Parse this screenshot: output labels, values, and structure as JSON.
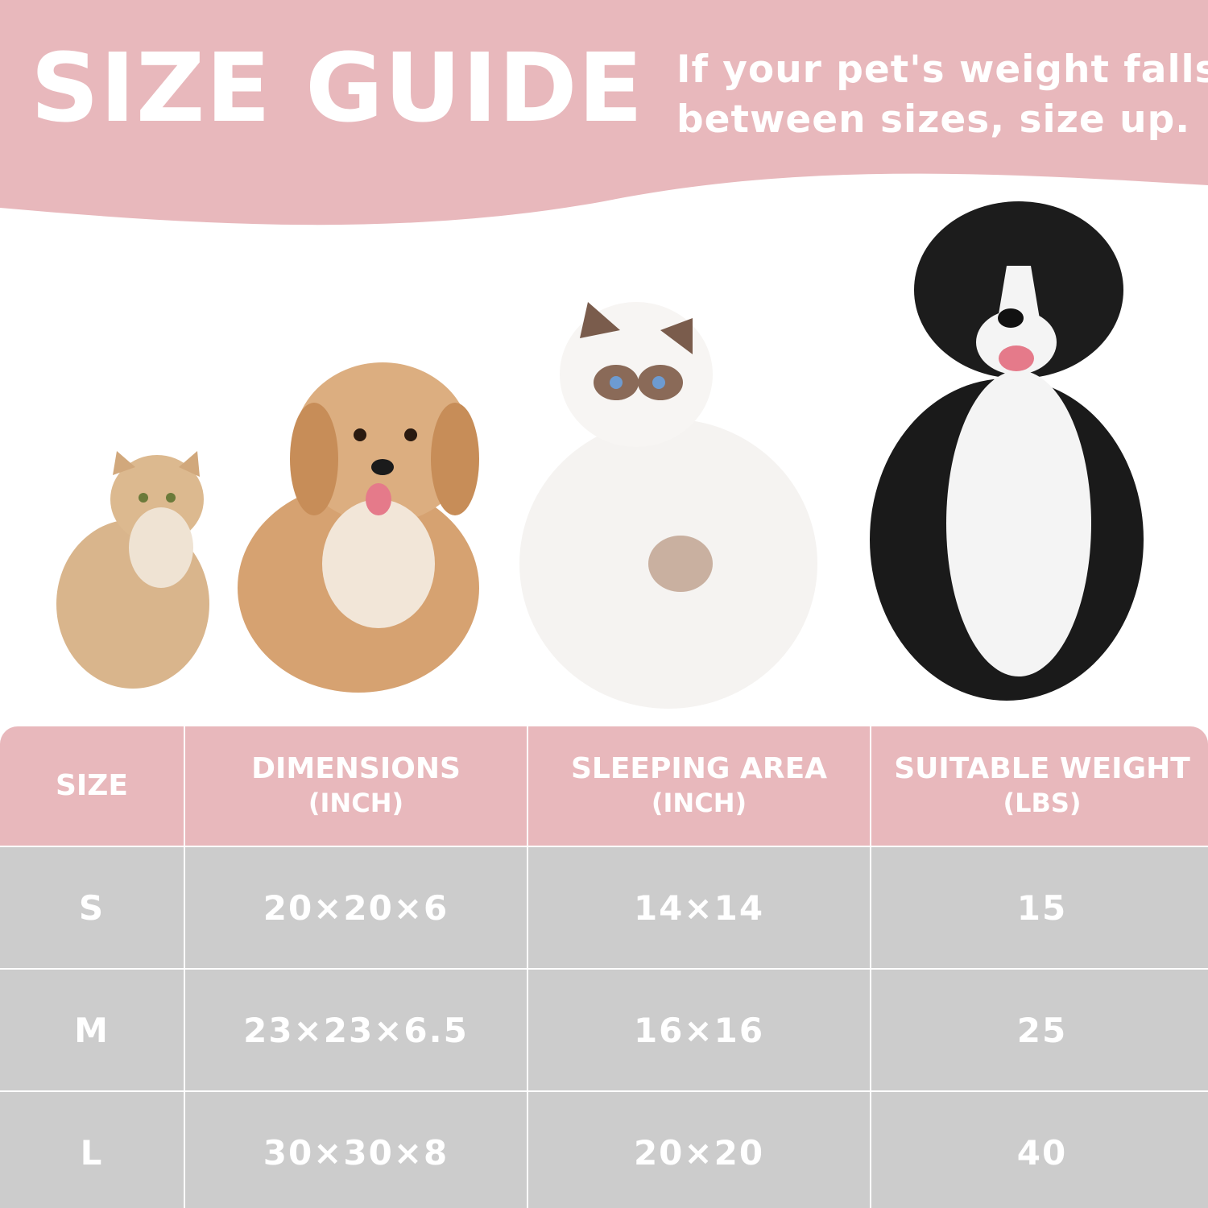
{
  "header": {
    "title": "SIZE GUIDE",
    "subtitle_line1": "If your pet's weight falls",
    "subtitle_line2": "between sizes, size up.",
    "color": "#e8b8bc"
  },
  "pets": [
    "small-cat",
    "small-dog",
    "ragdoll-cat",
    "border-collie-dog"
  ],
  "table": {
    "header_color": "#e8b8bc",
    "row_color": "#cccccc",
    "columns": [
      {
        "label": "SIZE",
        "unit": ""
      },
      {
        "label": "DIMENSIONS",
        "unit": "(INCH)"
      },
      {
        "label": "SLEEPING AREA",
        "unit": "(INCH)"
      },
      {
        "label": "SUITABLE WEIGHT",
        "unit": "(LBS)"
      }
    ],
    "rows": [
      [
        "S",
        "20×20×6",
        "14×14",
        "15"
      ],
      [
        "M",
        "23×23×6.5",
        "16×16",
        "25"
      ],
      [
        "L",
        "30×30×8",
        "20×20",
        "40"
      ]
    ]
  }
}
